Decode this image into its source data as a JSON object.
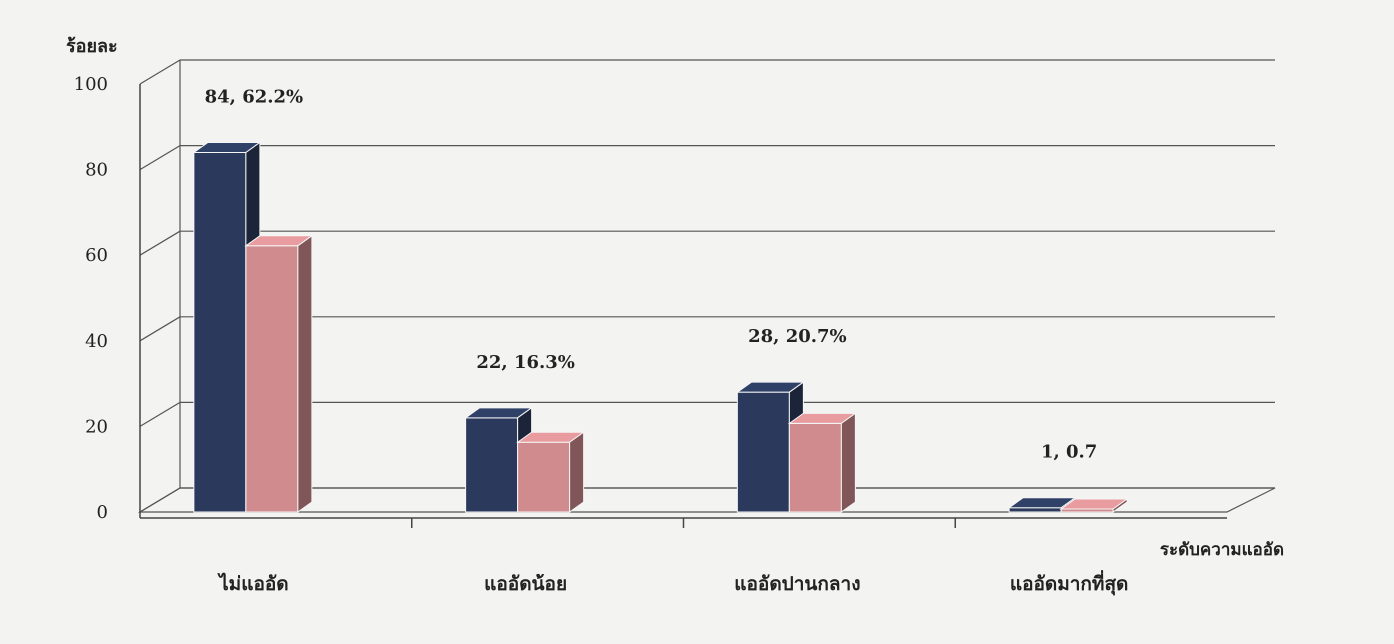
{
  "chart_data": {
    "type": "bar",
    "title": "",
    "ylabel": "ร้อยละ",
    "xlabel": "ระดับความแออัด",
    "ylim": [
      0,
      100
    ],
    "yticks": [
      0,
      20,
      40,
      60,
      80,
      100
    ],
    "grid": true,
    "legend": "none",
    "categories": [
      "ไม่แออัด",
      "แออัดน้อย",
      "แออัดปานกลาง",
      "แออัดมากที่สุด"
    ],
    "series": [
      {
        "values": [
          84,
          22,
          28,
          1
        ],
        "color": "#2b3a5c"
      },
      {
        "values": [
          62.2,
          16.3,
          20.7,
          0.7
        ],
        "color": "#cf8b8e"
      }
    ],
    "data_labels": [
      "84, 62.2%",
      "22, 16.3%",
      "28, 20.7%",
      "1, 0.7"
    ]
  }
}
